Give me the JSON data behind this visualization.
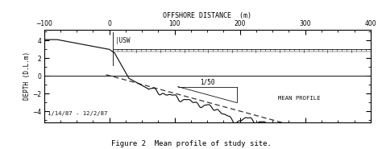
{
  "title": "Figure 2  Mean profile of study site.",
  "xlabel": "OFFSHORE DISTANCE  (m)",
  "ylabel": "DEPTH (D.L.m)",
  "xlim": [
    -100,
    400
  ],
  "ylim": [
    -5.2,
    5.2
  ],
  "yticks": [
    -4,
    -2,
    0,
    2,
    4
  ],
  "xticks": [
    -100,
    0,
    100,
    200,
    300,
    400
  ],
  "date_label": "1/14/87 - 12/2/87",
  "slope_label": "1/50",
  "mean_profile_label": "MEAN PROFILE",
  "usw_label": "|USW",
  "background": "#ffffff",
  "line_color": "#111111",
  "pier_y": 3.0,
  "pier_x_start": 5,
  "pier_x_end": 400,
  "zero_line_color": "#111111",
  "dash_slope": -0.02,
  "dash_x_start": -5,
  "dash_x_end": 400,
  "dash_y_start": 0.15
}
